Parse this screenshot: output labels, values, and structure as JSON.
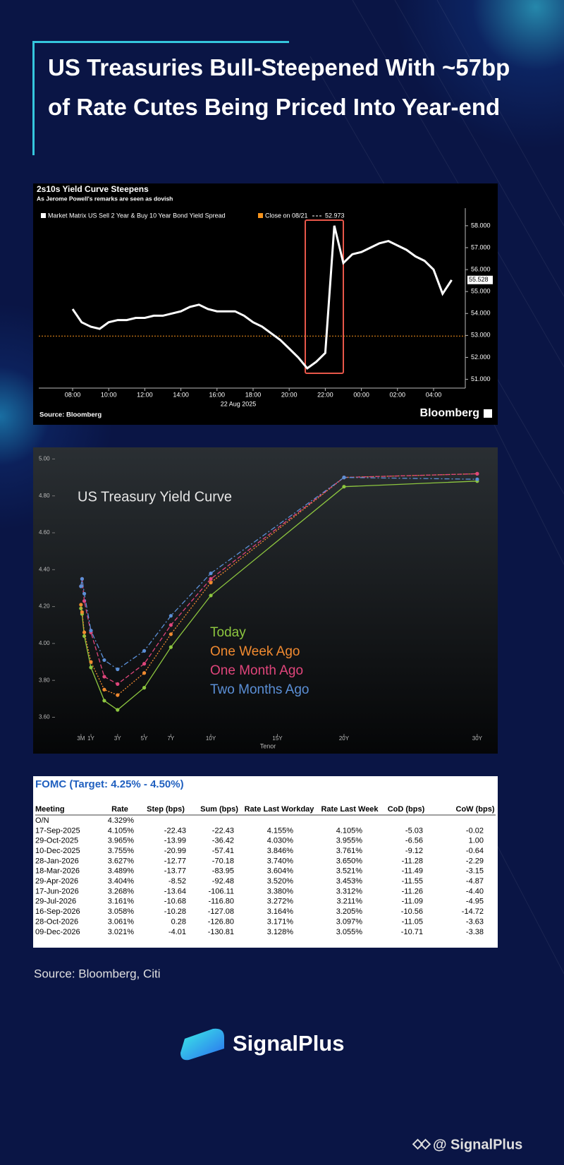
{
  "header": {
    "title": "US Treasuries Bull-Steepened With ~57bp of Rate Cutes Being Priced Into Year-end"
  },
  "chart_data": [
    {
      "type": "line",
      "title": "2s10s Yield Curve Steepens",
      "subtitle": "As Jerome Powell's remarks are seen as dovish",
      "xlabel": "22 Aug 2025",
      "source": "Source: Bloomberg",
      "brand": "Bloomberg",
      "categories": [
        "08:00",
        null,
        null,
        null,
        "10:00",
        null,
        null,
        null,
        "12:00",
        null,
        null,
        null,
        "14:00",
        null,
        null,
        null,
        "16:00",
        null,
        null,
        null,
        "18:00",
        null,
        null,
        null,
        "20:00",
        null,
        null,
        null,
        "22:00",
        null,
        null,
        null,
        "00:00",
        null,
        null,
        null,
        "02:00",
        null,
        null,
        null,
        "04:00",
        null,
        null
      ],
      "series": [
        {
          "name": "Market Matrix US Sell 2 Year & Buy 10 Year Bond Yield Spread",
          "color": "#ffffff",
          "values": [
            54.2,
            53.6,
            53.4,
            53.3,
            53.6,
            53.7,
            53.7,
            53.8,
            53.8,
            53.9,
            53.9,
            54.0,
            54.1,
            54.3,
            54.4,
            54.2,
            54.1,
            54.1,
            54.1,
            53.9,
            53.6,
            53.4,
            53.1,
            52.8,
            52.4,
            52.0,
            51.5,
            51.8,
            52.2,
            58.0,
            56.3,
            56.7,
            56.8,
            57.0,
            57.2,
            57.3,
            57.1,
            56.9,
            56.6,
            56.4,
            56.0,
            54.9,
            55.528
          ],
          "value_labels": [
            null,
            null,
            null,
            null,
            null,
            null,
            null,
            null,
            null,
            null,
            null,
            null,
            null,
            null,
            null,
            null,
            null,
            null,
            null,
            null,
            null,
            null,
            null,
            null,
            null,
            null,
            null,
            null,
            null,
            null,
            null,
            null,
            null,
            null,
            null,
            null,
            null,
            null,
            null,
            null,
            null,
            null,
            "55.528"
          ]
        }
      ],
      "reference": {
        "name": "Close on 08/21",
        "value": 52.973,
        "color": "#f7941d"
      },
      "ylim": [
        50.6,
        58.8
      ],
      "yticks": [
        {
          "value": 51,
          "label": "51.000"
        },
        {
          "value": 52,
          "label": "52.000"
        },
        {
          "value": 53,
          "label": "53.000"
        },
        {
          "value": 54,
          "label": "54.000"
        },
        {
          "value": 55,
          "label": "55.000"
        },
        {
          "value": 56,
          "label": "56.000"
        },
        {
          "value": 57,
          "label": "57.000"
        },
        {
          "value": 58,
          "label": "58.000"
        }
      ],
      "y_axis_side": "right"
    },
    {
      "type": "line",
      "title": "US Treasury Yield Curve",
      "xlabel": "Tenor",
      "x": [
        0.25,
        0.333,
        0.5,
        1,
        2,
        3,
        5,
        7,
        10,
        20,
        30
      ],
      "xlim": [
        -1.7,
        30.8
      ],
      "xticks": [
        {
          "value": 0.25,
          "label": "3M"
        },
        {
          "value": 1,
          "label": "1Y"
        },
        {
          "value": 3,
          "label": "3Y"
        },
        {
          "value": 5,
          "label": "5Y"
        },
        {
          "value": 7,
          "label": "7Y"
        },
        {
          "value": 10,
          "label": "10Y"
        },
        {
          "value": 15,
          "label": "15Y"
        },
        {
          "value": 20,
          "label": "20Y"
        },
        {
          "value": 30,
          "label": "30Y"
        }
      ],
      "ylim": [
        3.51,
        5.04
      ],
      "yticks": [
        {
          "value": 3.6,
          "label": "3.60"
        },
        {
          "value": 3.8,
          "label": "3.80"
        },
        {
          "value": 4.0,
          "label": "4.00"
        },
        {
          "value": 4.2,
          "label": "4.20"
        },
        {
          "value": 4.4,
          "label": "4.40"
        },
        {
          "value": 4.6,
          "label": "4.60"
        },
        {
          "value": 4.8,
          "label": "4.80"
        },
        {
          "value": 5.0,
          "label": "5.00"
        }
      ],
      "markers": true,
      "series": [
        {
          "name": "Today",
          "color": "#8dc63f",
          "line_style": "solid",
          "values": [
            4.19,
            4.16,
            4.04,
            3.87,
            3.69,
            3.64,
            3.76,
            3.98,
            4.26,
            4.85,
            4.88
          ]
        },
        {
          "name": "One Week Ago",
          "color": "#f08a30",
          "line_style": "dotted",
          "values": [
            4.21,
            4.17,
            4.06,
            3.9,
            3.75,
            3.72,
            3.84,
            4.05,
            4.33,
            4.9,
            4.92
          ]
        },
        {
          "name": "One Month Ago",
          "color": "#e0457b",
          "line_style": "dashed",
          "values": [
            4.31,
            4.35,
            4.23,
            4.06,
            3.82,
            3.78,
            3.89,
            4.1,
            4.35,
            4.9,
            4.92
          ]
        },
        {
          "name": "Two Months Ago",
          "color": "#5b8fd6",
          "line_style": "dashdot",
          "values": [
            4.31,
            4.35,
            4.27,
            4.07,
            3.91,
            3.86,
            3.96,
            4.15,
            4.38,
            4.9,
            4.89
          ]
        }
      ]
    }
  ],
  "table": {
    "title": "FOMC (Target: 4.25% - 4.50%)",
    "columns": [
      "Meeting",
      "Rate",
      "Step (bps)",
      "Sum (bps)",
      "Rate Last Workday",
      "Rate Last Week",
      "CoD (bps)",
      "CoW (bps)"
    ],
    "rows": [
      [
        "O/N",
        "4.329%"
      ],
      [
        "17-Sep-2025",
        "4.105%",
        "-22.43",
        "-22.43",
        "4.155%",
        "4.105%",
        "-5.03",
        "-0.02"
      ],
      [
        "29-Oct-2025",
        "3.965%",
        "-13.99",
        "-36.42",
        "4.030%",
        "3.955%",
        "-6.56",
        "1.00"
      ],
      [
        "10-Dec-2025",
        "3.755%",
        "-20.99",
        "-57.41",
        "3.846%",
        "3.761%",
        "-9.12",
        "-0.64"
      ],
      [
        "28-Jan-2026",
        "3.627%",
        "-12.77",
        "-70.18",
        "3.740%",
        "3.650%",
        "-11.28",
        "-2.29"
      ],
      [
        "18-Mar-2026",
        "3.489%",
        "-13.77",
        "-83.95",
        "3.604%",
        "3.521%",
        "-11.49",
        "-3.15"
      ],
      [
        "29-Apr-2026",
        "3.404%",
        "-8.52",
        "-92.48",
        "3.520%",
        "3.453%",
        "-11.55",
        "-4.87"
      ],
      [
        "17-Jun-2026",
        "3.268%",
        "-13.64",
        "-106.11",
        "3.380%",
        "3.312%",
        "-11.26",
        "-4.40"
      ],
      [
        "29-Jul-2026",
        "3.161%",
        "-10.68",
        "-116.80",
        "3.272%",
        "3.211%",
        "-11.09",
        "-4.95"
      ],
      [
        "16-Sep-2026",
        "3.058%",
        "-10.28",
        "-127.08",
        "3.164%",
        "3.205%",
        "-10.56",
        "-14.72"
      ],
      [
        "28-Oct-2026",
        "3.061%",
        "0.28",
        "-126.80",
        "3.171%",
        "3.097%",
        "-11.05",
        "-3.63"
      ],
      [
        "09-Dec-2026",
        "3.021%",
        "-4.01",
        "-130.81",
        "3.128%",
        "3.055%",
        "-10.71",
        "-3.38"
      ]
    ]
  },
  "source": "Source: Bloomberg, Citi",
  "brand": "SignalPlus",
  "watermark": "@ SignalPlus"
}
